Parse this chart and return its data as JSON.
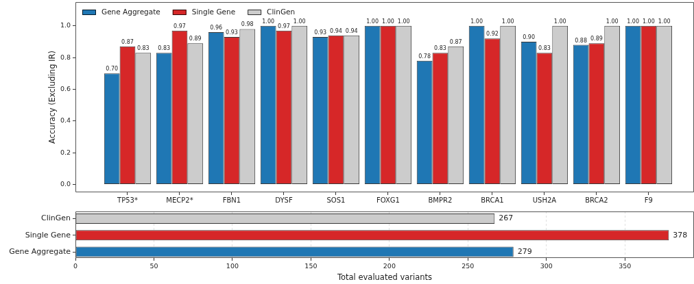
{
  "chart_data": [
    {
      "type": "bar",
      "ylabel": "Accuracy (Excluding IR)",
      "categories": [
        "TP53*",
        "MECP2*",
        "FBN1",
        "DYSF",
        "SOS1",
        "FOXG1",
        "BMPR2",
        "BRCA1",
        "USH2A",
        "BRCA2",
        "F9"
      ],
      "series": [
        {
          "name": "Gene Aggregate",
          "color": "#1f77b4",
          "values": [
            0.7,
            0.83,
            0.96,
            1.0,
            0.93,
            1.0,
            0.78,
            1.0,
            0.9,
            0.88,
            1.0
          ],
          "value_labels": [
            "0.70",
            "0.83",
            "0.96",
            "1.00",
            "0.93",
            "1.00",
            "0.78",
            "1.00",
            "0.90",
            "0.88",
            "1.00"
          ]
        },
        {
          "name": "Single Gene",
          "color": "#d62728",
          "values": [
            0.87,
            0.97,
            0.93,
            0.97,
            0.94,
            1.0,
            0.83,
            0.92,
            0.83,
            0.89,
            1.0
          ],
          "value_labels": [
            "0.87",
            "0.97",
            "0.93",
            "0.97",
            "0.94",
            "1.00",
            "0.83",
            "0.92",
            "0.83",
            "0.89",
            "1.00"
          ]
        },
        {
          "name": "ClinGen",
          "color": "#cccccc",
          "values": [
            0.83,
            0.89,
            0.98,
            1.0,
            0.94,
            1.0,
            0.87,
            1.0,
            1.0,
            1.0,
            1.0
          ],
          "value_labels": [
            "0.83",
            "0.89",
            "0.98",
            "1.00",
            "0.94",
            "1.00",
            "0.87",
            "1.00",
            "1.00",
            "1.00",
            "1.00"
          ]
        }
      ],
      "ylim": [
        -0.05,
        1.15
      ],
      "yticks": [
        {
          "value": 0,
          "label": "0.0"
        },
        {
          "value": 0.2,
          "label": "0.2"
        },
        {
          "value": 0.4,
          "label": "0.4"
        },
        {
          "value": 0.6,
          "label": "0.6"
        },
        {
          "value": 0.8,
          "label": "0.8"
        },
        {
          "value": 1,
          "label": "1.0"
        }
      ],
      "legend": "top left"
    },
    {
      "type": "bar",
      "orientation": "horizontal",
      "xlabel": "Total evaluated variants",
      "categories": [
        "ClinGen",
        "Single Gene",
        "Gene Aggregate"
      ],
      "values": [
        267,
        378,
        279
      ],
      "colors": [
        "#cccccc",
        "#d62728",
        "#1f77b4"
      ],
      "data_labels": true,
      "xlim": [
        0,
        394
      ],
      "xticks": [
        0,
        50,
        100,
        150,
        200,
        250,
        300,
        350
      ],
      "grid": "x"
    }
  ]
}
